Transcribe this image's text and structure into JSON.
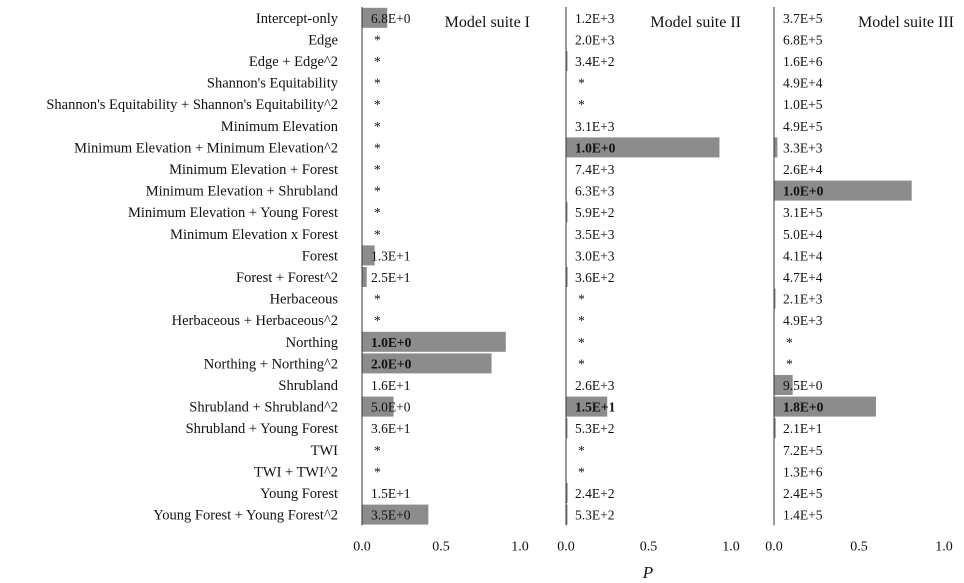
{
  "chart_data": {
    "type": "bar",
    "orientation": "horizontal",
    "categories": [
      "Intercept-only",
      "Edge",
      "Edge + Edge^2",
      "Shannon's Equitability",
      "Shannon's Equitability + Shannon's Equitability^2",
      "Minimum Elevation",
      "Minimum Elevation + Minimum Elevation^2",
      "Minimum Elevation + Forest",
      "Minimum Elevation + Shrubland",
      "Minimum Elevation + Young Forest",
      "Minimum Elevation x Forest",
      "Forest",
      "Forest + Forest^2",
      "Herbaceous",
      "Herbaceous + Herbaceous^2",
      "Northing",
      "Northing + Northing^2",
      "Shrubland",
      "Shrubland + Shrubland^2",
      "Shrubland + Young Forest",
      "TWI",
      "TWI + TWI^2",
      "Young Forest",
      "Young Forest + Young Forest^2"
    ],
    "xlabel": "P",
    "xlim": [
      0,
      1.0
    ],
    "xticks": [
      "0.0",
      "0.5",
      "1.0"
    ],
    "panels": [
      {
        "title": "Model suite I",
        "values": [
          0.16,
          null,
          null,
          null,
          null,
          null,
          null,
          null,
          null,
          null,
          null,
          0.08,
          0.03,
          null,
          null,
          0.91,
          0.82,
          0.0,
          0.2,
          0.0,
          null,
          null,
          0.0,
          0.42
        ],
        "labels": [
          "6.8E+0",
          "*",
          "*",
          "*",
          "*",
          "*",
          "*",
          "*",
          "*",
          "*",
          "*",
          "1.3E+1",
          "2.5E+1",
          "*",
          "*",
          "1.0E+0",
          "2.0E+0",
          "1.6E+1",
          "5.0E+0",
          "3.6E+1",
          "*",
          "*",
          "1.5E+1",
          "3.5E+0"
        ],
        "bold_index": [
          15,
          16
        ]
      },
      {
        "title": "Model suite II",
        "values": [
          0.0,
          0.0,
          0.005,
          null,
          null,
          0.0,
          0.93,
          0.0,
          0.0,
          0.005,
          0.0,
          0.0,
          0.01,
          null,
          null,
          null,
          null,
          0.0,
          0.25,
          0.005,
          null,
          null,
          0.01,
          0.005
        ],
        "labels": [
          "1.2E+3",
          "2.0E+3",
          "3.4E+2",
          "*",
          "*",
          "3.1E+3",
          "1.0E+0",
          "7.4E+3",
          "6.3E+3",
          "5.9E+2",
          "3.5E+3",
          "3.0E+3",
          "3.6E+2",
          "*",
          "*",
          "*",
          "*",
          "2.6E+3",
          "1.5E+1",
          "5.3E+2",
          "*",
          "*",
          "2.4E+2",
          "5.3E+2"
        ],
        "bold_index": [
          6,
          18
        ]
      },
      {
        "title": "Model suite III",
        "values": [
          0.0,
          0.0,
          0.0,
          0.0,
          0.0,
          0.0,
          0.02,
          0.0,
          0.81,
          0.0,
          0.0,
          0.0,
          0.0,
          0.005,
          0.0,
          null,
          null,
          0.11,
          0.6,
          0.01,
          0.0,
          0.0,
          0.0,
          0.0
        ],
        "labels": [
          "3.7E+5",
          "6.8E+5",
          "1.6E+6",
          "4.9E+4",
          "1.0E+5",
          "4.9E+5",
          "3.3E+3",
          "2.6E+4",
          "1.0E+0",
          "3.1E+5",
          "5.0E+4",
          "4.1E+4",
          "4.7E+4",
          "2.1E+3",
          "4.9E+3",
          "*",
          "*",
          "9.5E+0",
          "1.8E+0",
          "2.1E+1",
          "7.2E+5",
          "1.3E+6",
          "2.4E+5",
          "1.4E+5"
        ],
        "bold_index": [
          8,
          18
        ]
      }
    ],
    "bar_color": "#8c8c8c",
    "grid": false,
    "legend": "none"
  }
}
